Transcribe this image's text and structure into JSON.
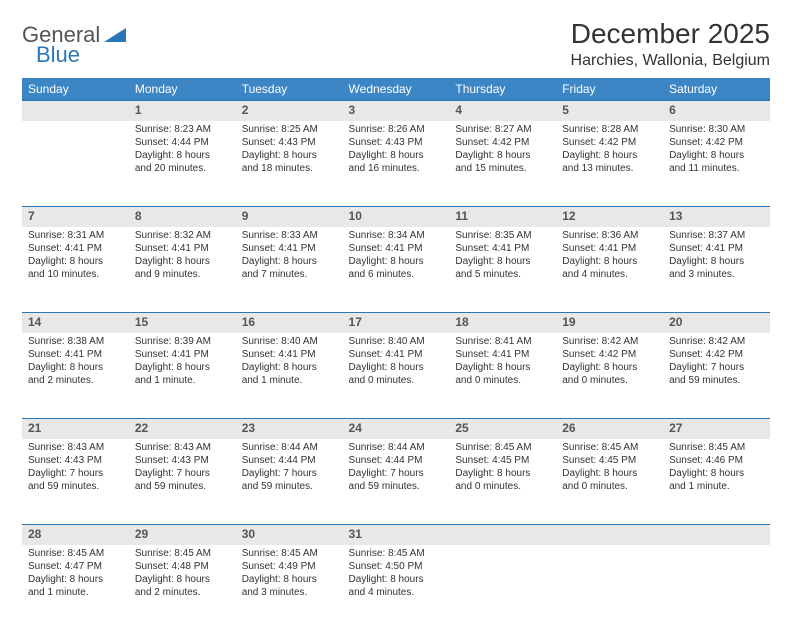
{
  "brand": {
    "part1": "General",
    "part2": "Blue"
  },
  "title": "December 2025",
  "location": "Harchies, Wallonia, Belgium",
  "colors": {
    "header_bg": "#3d86c6",
    "header_text": "#ffffff",
    "daynum_bg": "#e8e8e8",
    "daynum_border": "#2a77b8",
    "body_text": "#333333",
    "brand_blue": "#2a77b8",
    "page_bg": "#ffffff"
  },
  "day_headers": [
    "Sunday",
    "Monday",
    "Tuesday",
    "Wednesday",
    "Thursday",
    "Friday",
    "Saturday"
  ],
  "weeks": [
    {
      "nums": [
        "",
        "1",
        "2",
        "3",
        "4",
        "5",
        "6"
      ],
      "cells": [
        null,
        {
          "sunrise": "Sunrise: 8:23 AM",
          "sunset": "Sunset: 4:44 PM",
          "day1": "Daylight: 8 hours",
          "day2": "and 20 minutes."
        },
        {
          "sunrise": "Sunrise: 8:25 AM",
          "sunset": "Sunset: 4:43 PM",
          "day1": "Daylight: 8 hours",
          "day2": "and 18 minutes."
        },
        {
          "sunrise": "Sunrise: 8:26 AM",
          "sunset": "Sunset: 4:43 PM",
          "day1": "Daylight: 8 hours",
          "day2": "and 16 minutes."
        },
        {
          "sunrise": "Sunrise: 8:27 AM",
          "sunset": "Sunset: 4:42 PM",
          "day1": "Daylight: 8 hours",
          "day2": "and 15 minutes."
        },
        {
          "sunrise": "Sunrise: 8:28 AM",
          "sunset": "Sunset: 4:42 PM",
          "day1": "Daylight: 8 hours",
          "day2": "and 13 minutes."
        },
        {
          "sunrise": "Sunrise: 8:30 AM",
          "sunset": "Sunset: 4:42 PM",
          "day1": "Daylight: 8 hours",
          "day2": "and 11 minutes."
        }
      ]
    },
    {
      "nums": [
        "7",
        "8",
        "9",
        "10",
        "11",
        "12",
        "13"
      ],
      "cells": [
        {
          "sunrise": "Sunrise: 8:31 AM",
          "sunset": "Sunset: 4:41 PM",
          "day1": "Daylight: 8 hours",
          "day2": "and 10 minutes."
        },
        {
          "sunrise": "Sunrise: 8:32 AM",
          "sunset": "Sunset: 4:41 PM",
          "day1": "Daylight: 8 hours",
          "day2": "and 9 minutes."
        },
        {
          "sunrise": "Sunrise: 8:33 AM",
          "sunset": "Sunset: 4:41 PM",
          "day1": "Daylight: 8 hours",
          "day2": "and 7 minutes."
        },
        {
          "sunrise": "Sunrise: 8:34 AM",
          "sunset": "Sunset: 4:41 PM",
          "day1": "Daylight: 8 hours",
          "day2": "and 6 minutes."
        },
        {
          "sunrise": "Sunrise: 8:35 AM",
          "sunset": "Sunset: 4:41 PM",
          "day1": "Daylight: 8 hours",
          "day2": "and 5 minutes."
        },
        {
          "sunrise": "Sunrise: 8:36 AM",
          "sunset": "Sunset: 4:41 PM",
          "day1": "Daylight: 8 hours",
          "day2": "and 4 minutes."
        },
        {
          "sunrise": "Sunrise: 8:37 AM",
          "sunset": "Sunset: 4:41 PM",
          "day1": "Daylight: 8 hours",
          "day2": "and 3 minutes."
        }
      ]
    },
    {
      "nums": [
        "14",
        "15",
        "16",
        "17",
        "18",
        "19",
        "20"
      ],
      "cells": [
        {
          "sunrise": "Sunrise: 8:38 AM",
          "sunset": "Sunset: 4:41 PM",
          "day1": "Daylight: 8 hours",
          "day2": "and 2 minutes."
        },
        {
          "sunrise": "Sunrise: 8:39 AM",
          "sunset": "Sunset: 4:41 PM",
          "day1": "Daylight: 8 hours",
          "day2": "and 1 minute."
        },
        {
          "sunrise": "Sunrise: 8:40 AM",
          "sunset": "Sunset: 4:41 PM",
          "day1": "Daylight: 8 hours",
          "day2": "and 1 minute."
        },
        {
          "sunrise": "Sunrise: 8:40 AM",
          "sunset": "Sunset: 4:41 PM",
          "day1": "Daylight: 8 hours",
          "day2": "and 0 minutes."
        },
        {
          "sunrise": "Sunrise: 8:41 AM",
          "sunset": "Sunset: 4:41 PM",
          "day1": "Daylight: 8 hours",
          "day2": "and 0 minutes."
        },
        {
          "sunrise": "Sunrise: 8:42 AM",
          "sunset": "Sunset: 4:42 PM",
          "day1": "Daylight: 8 hours",
          "day2": "and 0 minutes."
        },
        {
          "sunrise": "Sunrise: 8:42 AM",
          "sunset": "Sunset: 4:42 PM",
          "day1": "Daylight: 7 hours",
          "day2": "and 59 minutes."
        }
      ]
    },
    {
      "nums": [
        "21",
        "22",
        "23",
        "24",
        "25",
        "26",
        "27"
      ],
      "cells": [
        {
          "sunrise": "Sunrise: 8:43 AM",
          "sunset": "Sunset: 4:43 PM",
          "day1": "Daylight: 7 hours",
          "day2": "and 59 minutes."
        },
        {
          "sunrise": "Sunrise: 8:43 AM",
          "sunset": "Sunset: 4:43 PM",
          "day1": "Daylight: 7 hours",
          "day2": "and 59 minutes."
        },
        {
          "sunrise": "Sunrise: 8:44 AM",
          "sunset": "Sunset: 4:44 PM",
          "day1": "Daylight: 7 hours",
          "day2": "and 59 minutes."
        },
        {
          "sunrise": "Sunrise: 8:44 AM",
          "sunset": "Sunset: 4:44 PM",
          "day1": "Daylight: 7 hours",
          "day2": "and 59 minutes."
        },
        {
          "sunrise": "Sunrise: 8:45 AM",
          "sunset": "Sunset: 4:45 PM",
          "day1": "Daylight: 8 hours",
          "day2": "and 0 minutes."
        },
        {
          "sunrise": "Sunrise: 8:45 AM",
          "sunset": "Sunset: 4:45 PM",
          "day1": "Daylight: 8 hours",
          "day2": "and 0 minutes."
        },
        {
          "sunrise": "Sunrise: 8:45 AM",
          "sunset": "Sunset: 4:46 PM",
          "day1": "Daylight: 8 hours",
          "day2": "and 1 minute."
        }
      ]
    },
    {
      "nums": [
        "28",
        "29",
        "30",
        "31",
        "",
        "",
        ""
      ],
      "cells": [
        {
          "sunrise": "Sunrise: 8:45 AM",
          "sunset": "Sunset: 4:47 PM",
          "day1": "Daylight: 8 hours",
          "day2": "and 1 minute."
        },
        {
          "sunrise": "Sunrise: 8:45 AM",
          "sunset": "Sunset: 4:48 PM",
          "day1": "Daylight: 8 hours",
          "day2": "and 2 minutes."
        },
        {
          "sunrise": "Sunrise: 8:45 AM",
          "sunset": "Sunset: 4:49 PM",
          "day1": "Daylight: 8 hours",
          "day2": "and 3 minutes."
        },
        {
          "sunrise": "Sunrise: 8:45 AM",
          "sunset": "Sunset: 4:50 PM",
          "day1": "Daylight: 8 hours",
          "day2": "and 4 minutes."
        },
        null,
        null,
        null
      ]
    }
  ]
}
